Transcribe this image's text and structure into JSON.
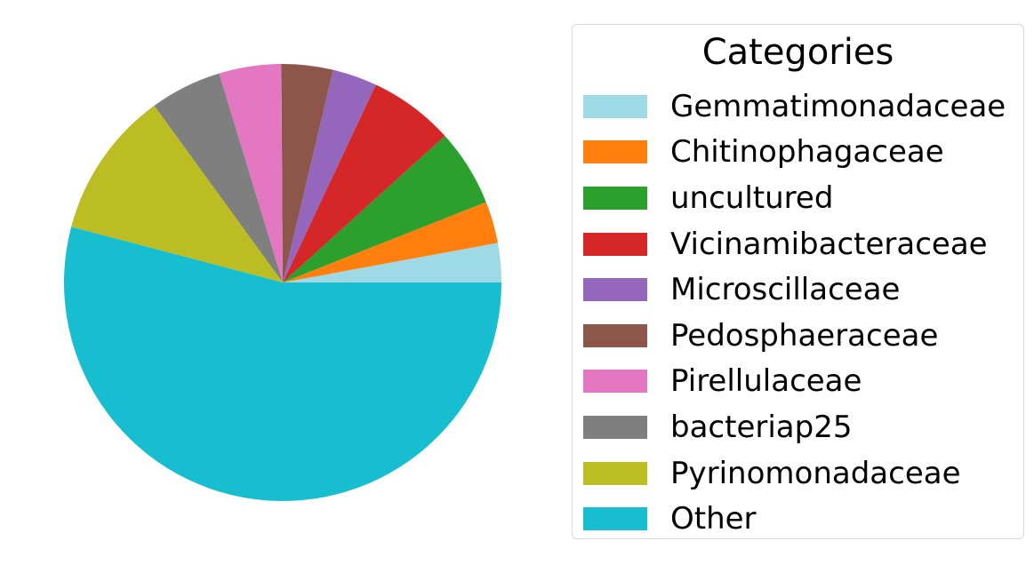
{
  "chart_data": {
    "type": "pie",
    "title": "",
    "legend": {
      "title": "Categories",
      "placement": "right"
    },
    "slices": [
      {
        "label": "Gemmatimonadaceae",
        "value": 2.9,
        "color": "#9edae5"
      },
      {
        "label": "Chitinophagaceae",
        "value": 3.1,
        "color": "#ff7f0e"
      },
      {
        "label": "uncultured",
        "value": 5.7,
        "color": "#2ca02c"
      },
      {
        "label": "Vicinamibacteraceae",
        "value": 6.3,
        "color": "#d62728"
      },
      {
        "label": "Microscillaceae",
        "value": 3.3,
        "color": "#9467bd"
      },
      {
        "label": "Pedosphaeraceae",
        "value": 3.8,
        "color": "#8c564b"
      },
      {
        "label": "Pirellulaceae",
        "value": 4.6,
        "color": "#e377c2"
      },
      {
        "label": "bacteriap25",
        "value": 5.3,
        "color": "#7f7f7f"
      },
      {
        "label": "Pyrinomonadaceae",
        "value": 10.9,
        "color": "#bcbd22"
      },
      {
        "label": "Other",
        "value": 54.1,
        "color": "#17becf"
      }
    ],
    "start_angle_deg": 0,
    "direction": "counterclockwise"
  }
}
